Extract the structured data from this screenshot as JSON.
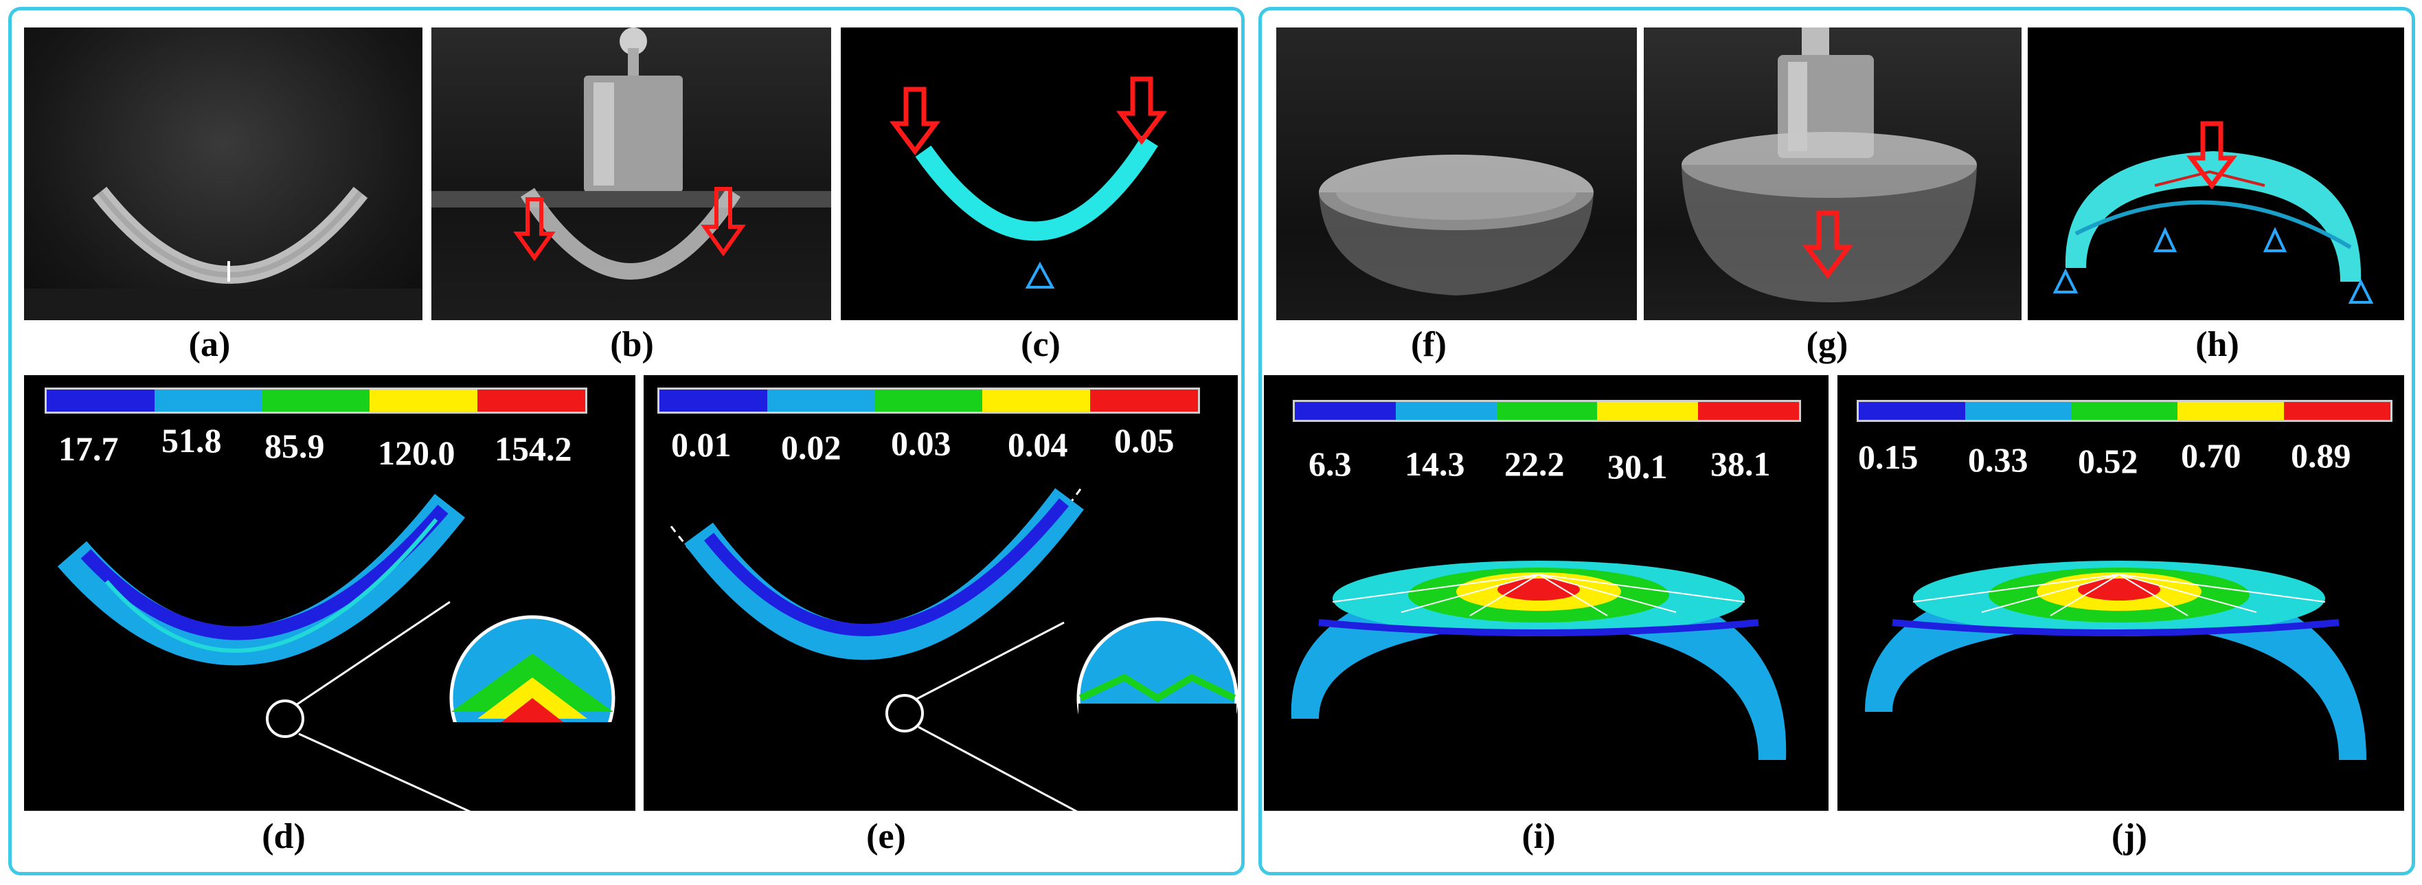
{
  "captions": {
    "a": "(a)",
    "b": "(b)",
    "c": "(c)",
    "d": "(d)",
    "e": "(e)",
    "f": "(f)",
    "g": "(g)",
    "h": "(h)",
    "i": "(i)",
    "j": "(j)"
  },
  "colorbar": [
    "#1f1fe0",
    "#19a8e6",
    "#18d11a",
    "#ffee00",
    "#f01818"
  ],
  "legend_d": [
    "17.7",
    "51.8",
    "85.9",
    "120.0",
    "154.2"
  ],
  "legend_e": [
    "0.01",
    "0.02",
    "0.03",
    "0.04",
    "0.05"
  ],
  "legend_i": [
    "6.3",
    "14.3",
    "22.2",
    "30.1",
    "38.1"
  ],
  "legend_j": [
    "0.15",
    "0.33",
    "0.52",
    "0.70",
    "0.89"
  ]
}
